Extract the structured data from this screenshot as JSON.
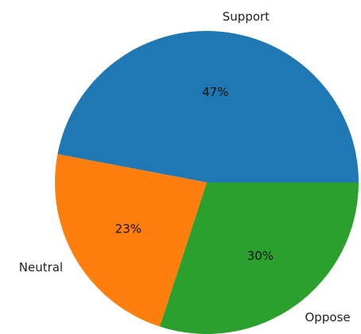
{
  "chart_data": {
    "type": "pie",
    "categories": [
      "Support",
      "Neutral",
      "Oppose"
    ],
    "values": [
      47,
      23,
      30
    ],
    "value_labels": [
      "47%",
      "23%",
      "30%"
    ],
    "colors": [
      "#1f77b4",
      "#ff7f0e",
      "#2ca02c"
    ],
    "start_angle_deg": 0,
    "direction": "counterclockwise",
    "title": "",
    "legend": "none"
  }
}
